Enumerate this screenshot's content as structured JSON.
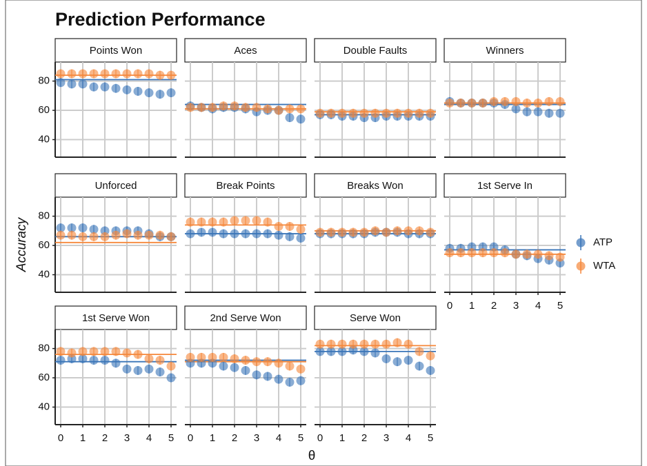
{
  "title": "Prediction Performance",
  "y_label": "Accuracy",
  "x_label": "θ",
  "chart_data": [
    {
      "type": "scatter",
      "title": "Points Won",
      "x": [
        0,
        0.5,
        1,
        1.5,
        2,
        2.5,
        3,
        3.5,
        4,
        4.5,
        5
      ],
      "xlim": [
        -0.25,
        5.25
      ],
      "xticks": [
        0,
        1,
        2,
        3,
        4,
        5
      ],
      "ylim": [
        28,
        93
      ],
      "yticks": [
        40,
        60,
        80
      ],
      "grid": true,
      "series": [
        {
          "name": "ATP",
          "color": "#3a75b8",
          "values": [
            79,
            78,
            78,
            76,
            76,
            75,
            74,
            73,
            72,
            71,
            72
          ],
          "error": 3,
          "reference": 81
        },
        {
          "name": "WTA",
          "color": "#f5873a",
          "values": [
            85,
            85,
            85,
            85,
            85,
            85,
            85,
            85,
            85,
            84,
            84
          ],
          "error": 3,
          "reference": 84
        }
      ]
    },
    {
      "type": "scatter",
      "title": "Aces",
      "x": [
        0,
        0.5,
        1,
        1.5,
        2,
        2.5,
        3,
        3.5,
        4,
        4.5,
        5
      ],
      "xlim": [
        -0.25,
        5.25
      ],
      "xticks": [
        0,
        1,
        2,
        3,
        4,
        5
      ],
      "ylim": [
        28,
        93
      ],
      "yticks": [
        40,
        60,
        80
      ],
      "grid": true,
      "series": [
        {
          "name": "ATP",
          "color": "#3a75b8",
          "values": [
            63,
            62,
            61,
            62,
            62,
            61,
            59,
            60,
            60,
            55,
            54
          ],
          "error": 3,
          "reference": 64
        },
        {
          "name": "WTA",
          "color": "#f5873a",
          "values": [
            62,
            62,
            62,
            63,
            63,
            62,
            62,
            61,
            60,
            61,
            61
          ],
          "error": 3,
          "reference": 61
        }
      ]
    },
    {
      "type": "scatter",
      "title": "Double Faults",
      "x": [
        0,
        0.5,
        1,
        1.5,
        2,
        2.5,
        3,
        3.5,
        4,
        4.5,
        5
      ],
      "xlim": [
        -0.25,
        5.25
      ],
      "xticks": [
        0,
        1,
        2,
        3,
        4,
        5
      ],
      "ylim": [
        28,
        93
      ],
      "yticks": [
        40,
        60,
        80
      ],
      "grid": true,
      "series": [
        {
          "name": "ATP",
          "color": "#3a75b8",
          "values": [
            57,
            57,
            56,
            56,
            55,
            55,
            56,
            56,
            56,
            56,
            56
          ],
          "error": 3,
          "reference": 57
        },
        {
          "name": "WTA",
          "color": "#f5873a",
          "values": [
            58,
            58,
            58,
            58,
            58,
            58,
            58,
            58,
            58,
            58,
            58
          ],
          "error": 3,
          "reference": 59
        }
      ]
    },
    {
      "type": "scatter",
      "title": "Winners",
      "x": [
        0,
        0.5,
        1,
        1.5,
        2,
        2.5,
        3,
        3.5,
        4,
        4.5,
        5
      ],
      "xlim": [
        -0.25,
        5.25
      ],
      "xticks": [
        0,
        1,
        2,
        3,
        4,
        5
      ],
      "ylim": [
        28,
        93
      ],
      "yticks": [
        40,
        60,
        80
      ],
      "grid": true,
      "series": [
        {
          "name": "ATP",
          "color": "#3a75b8",
          "values": [
            66,
            65,
            65,
            65,
            65,
            64,
            61,
            59,
            59,
            58,
            58
          ],
          "error": 3,
          "reference": 64
        },
        {
          "name": "WTA",
          "color": "#f5873a",
          "values": [
            65,
            65,
            65,
            65,
            66,
            66,
            66,
            65,
            65,
            66,
            66
          ],
          "error": 3,
          "reference": 65
        }
      ]
    },
    {
      "type": "scatter",
      "title": "Unforced",
      "x": [
        0,
        0.5,
        1,
        1.5,
        2,
        2.5,
        3,
        3.5,
        4,
        4.5,
        5
      ],
      "xlim": [
        -0.25,
        5.25
      ],
      "xticks": [
        0,
        1,
        2,
        3,
        4,
        5
      ],
      "ylim": [
        28,
        93
      ],
      "yticks": [
        40,
        60,
        80
      ],
      "grid": true,
      "series": [
        {
          "name": "ATP",
          "color": "#3a75b8",
          "values": [
            72,
            72,
            72,
            71,
            70,
            70,
            70,
            70,
            68,
            66,
            66
          ],
          "error": 3,
          "reference": 66
        },
        {
          "name": "WTA",
          "color": "#f5873a",
          "values": [
            67,
            67,
            66,
            66,
            66,
            67,
            68,
            67,
            67,
            67,
            66
          ],
          "error": 3,
          "reference": 62
        }
      ]
    },
    {
      "type": "scatter",
      "title": "Break Points",
      "x": [
        0,
        0.5,
        1,
        1.5,
        2,
        2.5,
        3,
        3.5,
        4,
        4.5,
        5
      ],
      "xlim": [
        -0.25,
        5.25
      ],
      "xticks": [
        0,
        1,
        2,
        3,
        4,
        5
      ],
      "ylim": [
        28,
        93
      ],
      "yticks": [
        40,
        60,
        80
      ],
      "grid": true,
      "series": [
        {
          "name": "ATP",
          "color": "#3a75b8",
          "values": [
            68,
            69,
            69,
            68,
            68,
            68,
            68,
            68,
            67,
            66,
            65
          ],
          "error": 3,
          "reference": 68
        },
        {
          "name": "WTA",
          "color": "#f5873a",
          "values": [
            76,
            76,
            76,
            76,
            77,
            77,
            77,
            76,
            73,
            73,
            71
          ],
          "error": 3,
          "reference": 74
        }
      ]
    },
    {
      "type": "scatter",
      "title": "Breaks Won",
      "x": [
        0,
        0.5,
        1,
        1.5,
        2,
        2.5,
        3,
        3.5,
        4,
        4.5,
        5
      ],
      "xlim": [
        -0.25,
        5.25
      ],
      "xticks": [
        0,
        1,
        2,
        3,
        4,
        5
      ],
      "ylim": [
        28,
        93
      ],
      "yticks": [
        40,
        60,
        80
      ],
      "grid": true,
      "series": [
        {
          "name": "ATP",
          "color": "#3a75b8",
          "values": [
            68,
            68,
            68,
            68,
            68,
            69,
            69,
            69,
            68,
            68,
            68
          ],
          "error": 3,
          "reference": 68
        },
        {
          "name": "WTA",
          "color": "#f5873a",
          "values": [
            69,
            69,
            69,
            69,
            69,
            70,
            69,
            70,
            70,
            70,
            69
          ],
          "error": 3,
          "reference": 70
        }
      ]
    },
    {
      "type": "scatter",
      "title": "1st Serve In",
      "x": [
        0,
        0.5,
        1,
        1.5,
        2,
        2.5,
        3,
        3.5,
        4,
        4.5,
        5
      ],
      "xlim": [
        -0.25,
        5.25
      ],
      "xticks": [
        0,
        1,
        2,
        3,
        4,
        5
      ],
      "ylim": [
        28,
        93
      ],
      "yticks": [
        40,
        60,
        80
      ],
      "grid": true,
      "series": [
        {
          "name": "ATP",
          "color": "#3a75b8",
          "values": [
            58,
            58,
            59,
            59,
            59,
            57,
            54,
            53,
            51,
            50,
            48
          ],
          "error": 3,
          "reference": 57
        },
        {
          "name": "WTA",
          "color": "#f5873a",
          "values": [
            55,
            55,
            55,
            55,
            55,
            55,
            54,
            54,
            54,
            53,
            52
          ],
          "error": 3,
          "reference": 54
        }
      ]
    },
    {
      "type": "scatter",
      "title": "1st Serve Won",
      "x": [
        0,
        0.5,
        1,
        1.5,
        2,
        2.5,
        3,
        3.5,
        4,
        4.5,
        5
      ],
      "xlim": [
        -0.25,
        5.25
      ],
      "xticks": [
        0,
        1,
        2,
        3,
        4,
        5
      ],
      "ylim": [
        28,
        93
      ],
      "yticks": [
        40,
        60,
        80
      ],
      "grid": true,
      "series": [
        {
          "name": "ATP",
          "color": "#3a75b8",
          "values": [
            72,
            73,
            73,
            72,
            72,
            70,
            66,
            65,
            66,
            64,
            60
          ],
          "error": 3,
          "reference": 71
        },
        {
          "name": "WTA",
          "color": "#f5873a",
          "values": [
            78,
            77,
            78,
            78,
            78,
            78,
            77,
            76,
            73,
            72,
            68
          ],
          "error": 3,
          "reference": 76
        }
      ]
    },
    {
      "type": "scatter",
      "title": "2nd Serve Won",
      "x": [
        0,
        0.5,
        1,
        1.5,
        2,
        2.5,
        3,
        3.5,
        4,
        4.5,
        5
      ],
      "xlim": [
        -0.25,
        5.25
      ],
      "xticks": [
        0,
        1,
        2,
        3,
        4,
        5
      ],
      "ylim": [
        28,
        93
      ],
      "yticks": [
        40,
        60,
        80
      ],
      "grid": true,
      "series": [
        {
          "name": "ATP",
          "color": "#3a75b8",
          "values": [
            70,
            70,
            70,
            68,
            67,
            65,
            62,
            61,
            59,
            57,
            58
          ],
          "error": 3,
          "reference": 72
        },
        {
          "name": "WTA",
          "color": "#f5873a",
          "values": [
            74,
            74,
            74,
            74,
            73,
            72,
            71,
            71,
            70,
            68,
            66
          ],
          "error": 3,
          "reference": 71
        }
      ]
    },
    {
      "type": "scatter",
      "title": "Serve Won",
      "x": [
        0,
        0.5,
        1,
        1.5,
        2,
        2.5,
        3,
        3.5,
        4,
        4.5,
        5
      ],
      "xlim": [
        -0.25,
        5.25
      ],
      "xticks": [
        0,
        1,
        2,
        3,
        4,
        5
      ],
      "ylim": [
        28,
        93
      ],
      "yticks": [
        40,
        60,
        80
      ],
      "grid": true,
      "series": [
        {
          "name": "ATP",
          "color": "#3a75b8",
          "values": [
            78,
            78,
            78,
            79,
            78,
            77,
            73,
            71,
            72,
            68,
            65
          ],
          "error": 3,
          "reference": 78
        },
        {
          "name": "WTA",
          "color": "#f5873a",
          "values": [
            83,
            83,
            83,
            83,
            83,
            83,
            83,
            84,
            83,
            78,
            75
          ],
          "error": 3,
          "reference": 82
        }
      ]
    }
  ]
}
